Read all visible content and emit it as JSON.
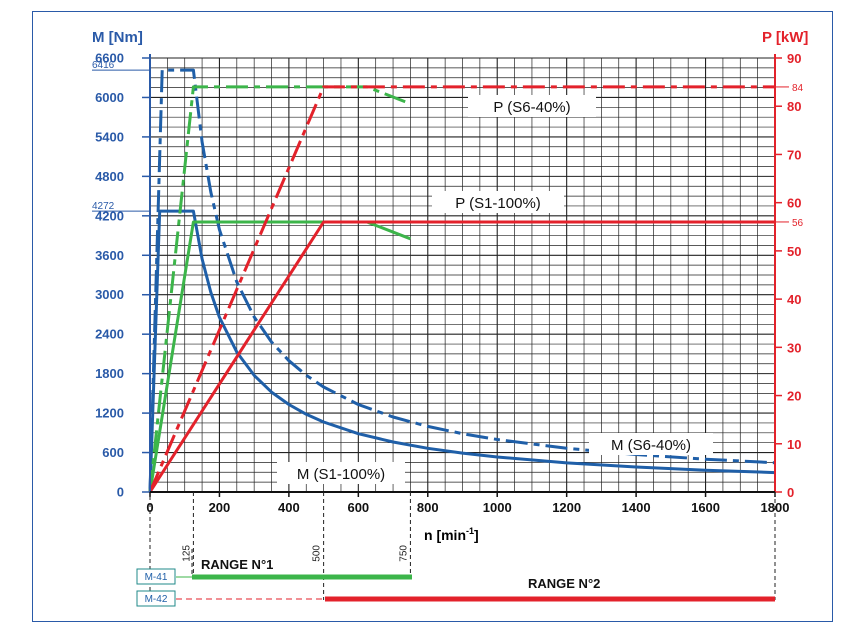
{
  "chart_data": {
    "type": "line",
    "left_axis": {
      "label": "M [Nm]",
      "ylim": [
        0,
        6600
      ],
      "ticks": [
        "0",
        "600",
        "1200",
        "1800",
        "2400",
        "3000",
        "3600",
        "4200",
        "4800",
        "5400",
        "6000",
        "6600"
      ],
      "marks": [
        "6416",
        "4272"
      ]
    },
    "right_axis": {
      "label": "P [kW]",
      "ylim": [
        0,
        90
      ],
      "ticks": [
        "0",
        "10",
        "20",
        "30",
        "40",
        "50",
        "60",
        "70",
        "80",
        "90"
      ],
      "marks": [
        "84",
        "56"
      ]
    },
    "x_axis": {
      "label_main": "n [min",
      "label_sup": "-1",
      "label_end": "]",
      "xlim": [
        0,
        1800
      ],
      "ticks": [
        "0",
        "200",
        "400",
        "600",
        "800",
        "1000",
        "1200",
        "1400",
        "1600",
        "1800"
      ],
      "marks": [
        "125",
        "500",
        "750"
      ]
    },
    "curve_labels": {
      "p_s6": "P (S6-40%)",
      "p_s1": "P (S1-100%)",
      "m_s6": "M (S6-40%)",
      "m_s1": "M (S1-100%)"
    },
    "ranges": {
      "range1": "RANGE N°1",
      "range2": "RANGE N°2",
      "m41": "M-41",
      "m42": "M-42"
    },
    "colors": {
      "blue": "#1f5fa8",
      "red": "#e3222b",
      "green": "#3cb54a",
      "axis_blue": "#2a5aa8",
      "grid": "#222222"
    },
    "series": [
      {
        "color": "blue",
        "dash": "solid",
        "points": [
          [
            0,
            0
          ],
          [
            28,
            4272
          ],
          [
            125,
            4272
          ],
          [
            150,
            3544
          ],
          [
            175,
            3039
          ],
          [
            200,
            2659
          ],
          [
            250,
            2127
          ],
          [
            300,
            1773
          ],
          [
            350,
            1519
          ],
          [
            400,
            1330
          ],
          [
            450,
            1182
          ],
          [
            500,
            1064
          ],
          [
            600,
            887
          ],
          [
            700,
            760
          ],
          [
            800,
            665
          ],
          [
            900,
            591
          ],
          [
            1000,
            532
          ],
          [
            1200,
            443
          ],
          [
            1400,
            380
          ],
          [
            1600,
            332
          ],
          [
            1800,
            295
          ]
        ]
      },
      {
        "color": "blue",
        "dash": "dashdot",
        "points": [
          [
            0,
            0
          ],
          [
            35,
            6416
          ],
          [
            125,
            6416
          ],
          [
            150,
            5322
          ],
          [
            175,
            4562
          ],
          [
            200,
            3992
          ],
          [
            250,
            3193
          ],
          [
            300,
            2661
          ],
          [
            350,
            2281
          ],
          [
            400,
            1996
          ],
          [
            450,
            1774
          ],
          [
            500,
            1597
          ],
          [
            600,
            1331
          ],
          [
            700,
            1141
          ],
          [
            800,
            998
          ],
          [
            900,
            887
          ],
          [
            1000,
            798
          ],
          [
            1200,
            665
          ],
          [
            1400,
            570
          ],
          [
            1600,
            499
          ],
          [
            1800,
            444
          ]
        ]
      },
      {
        "color": "green",
        "dash": "solid",
        "points": [
          [
            0,
            0
          ],
          [
            125,
            56
          ],
          [
            625,
            56
          ],
          [
            750,
            52.5
          ]
        ]
      },
      {
        "color": "green",
        "dash": "dashdot",
        "points": [
          [
            0,
            0
          ],
          [
            125,
            84
          ],
          [
            625,
            84
          ],
          [
            750,
            80.5
          ]
        ]
      },
      {
        "color": "red",
        "dash": "solid",
        "points": [
          [
            0,
            0
          ],
          [
            500,
            56
          ],
          [
            1800,
            56
          ]
        ]
      },
      {
        "color": "red",
        "dash": "dashdot",
        "points": [
          [
            0,
            0
          ],
          [
            500,
            84
          ],
          [
            1800,
            84
          ]
        ]
      }
    ]
  }
}
